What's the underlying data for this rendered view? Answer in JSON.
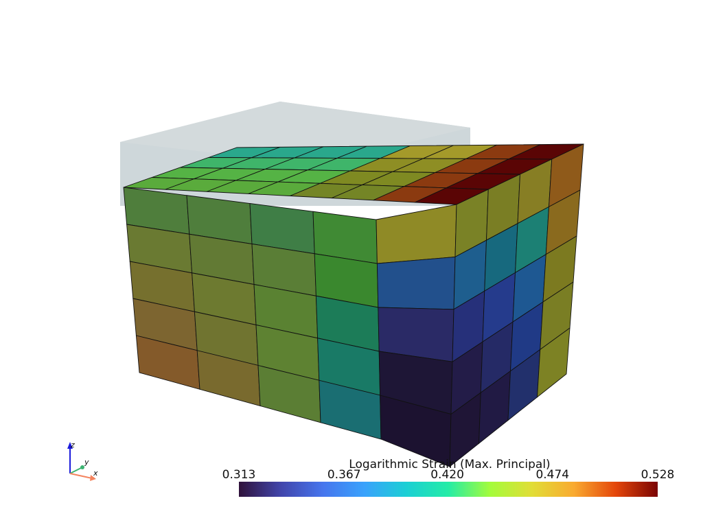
{
  "colorbar": {
    "title": "Logarithmic Strain (Max. Principal)",
    "lim": [
      0.313,
      0.528
    ],
    "ticks": [
      0.313,
      {
        "value": 0.367,
        "label": "0.367"
      },
      {
        "value": 0.42,
        "label": "0.420"
      },
      0.474,
      0.528
    ]
  },
  "axes": {
    "x": "x",
    "y": "y",
    "z": "z"
  }
}
